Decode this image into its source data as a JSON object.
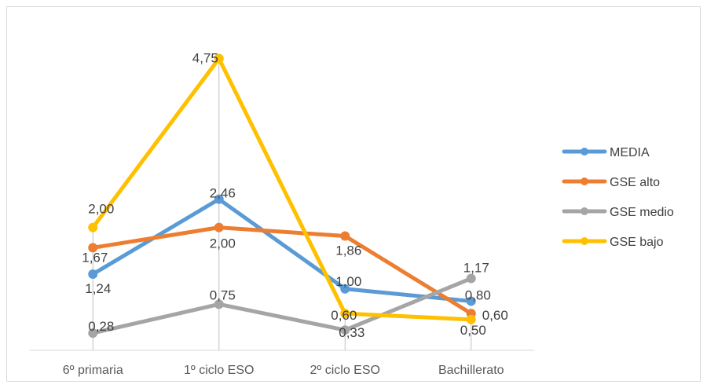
{
  "chart_data": {
    "type": "line",
    "title": "",
    "xlabel": "",
    "ylabel": "",
    "categories": [
      "6º primaria",
      "1º ciclo ESO",
      "2º ciclo ESO",
      "Bachillerato"
    ],
    "ylim": [
      0,
      5
    ],
    "grid": "vertical drop lines at each category",
    "legend_position": "right",
    "series": [
      {
        "name": "MEDIA",
        "color": "#5b9bd5",
        "values": [
          1.24,
          2.46,
          1.0,
          0.8
        ],
        "labels": [
          "1,24",
          "2,46",
          "1,00",
          "0,80"
        ]
      },
      {
        "name": "GSE alto",
        "color": "#ed7d31",
        "values": [
          1.67,
          2.0,
          1.86,
          0.6
        ],
        "labels": [
          "1,67",
          "2,00",
          "1,86",
          "0,60"
        ]
      },
      {
        "name": "GSE medio",
        "color": "#a5a5a5",
        "values": [
          0.28,
          0.75,
          0.33,
          1.17
        ],
        "labels": [
          "0,28",
          "0,75",
          "0,33",
          "1,17"
        ]
      },
      {
        "name": "GSE bajo",
        "color": "#ffc000",
        "values": [
          2.0,
          4.75,
          0.6,
          0.5
        ],
        "labels": [
          "2,00",
          "4,75",
          "0,60",
          "0,50"
        ]
      }
    ]
  }
}
